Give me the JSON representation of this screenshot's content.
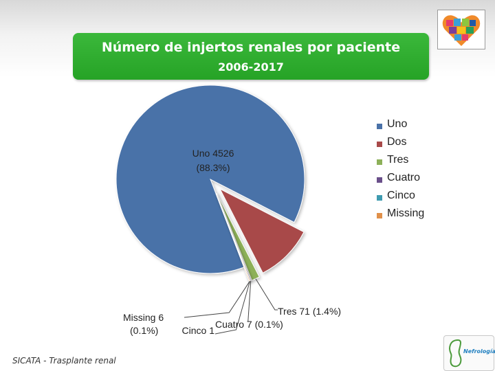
{
  "title": "Número de injertos renales por paciente",
  "subtitle": "2006-2017",
  "footer": "SICATA - Trasplante renal",
  "footer_logo_text": "Nefrología",
  "colors": {
    "title_bg": "#2aa52a",
    "uno": "#4a72a8",
    "dos": "#a84a4a",
    "tres": "#8db059",
    "cuatro": "#6a4f8a",
    "cinco": "#3f9bb0",
    "missing": "#e0904a"
  },
  "chart_data": {
    "type": "pie",
    "title": "Número de injertos renales por paciente",
    "subtitle": "2006-2017",
    "legend_position": "right",
    "slices": [
      {
        "name": "Uno",
        "value": 4526,
        "percent": 88.3,
        "label": "Uno 4526",
        "label2": "(88.3%)",
        "color": "#4a72a8"
      },
      {
        "name": "Dos",
        "value": 510,
        "percent": 10.0,
        "label": "",
        "label2": "",
        "color": "#a84a4a"
      },
      {
        "name": "Tres",
        "value": 71,
        "percent": 1.4,
        "label": "Tres 71 (1.4%)",
        "label2": "",
        "color": "#8db059"
      },
      {
        "name": "Cuatro",
        "value": 7,
        "percent": 0.1,
        "label": "Cuatro 7 (0.1%)",
        "label2": "",
        "color": "#6a4f8a"
      },
      {
        "name": "Cinco",
        "value": 1,
        "percent": 0.0,
        "label": "Cinco 1",
        "label2": "",
        "color": "#3f9bb0"
      },
      {
        "name": "Missing",
        "value": 6,
        "percent": 0.1,
        "label": "Missing 6",
        "label2": "(0.1%)",
        "color": "#e0904a"
      }
    ]
  }
}
